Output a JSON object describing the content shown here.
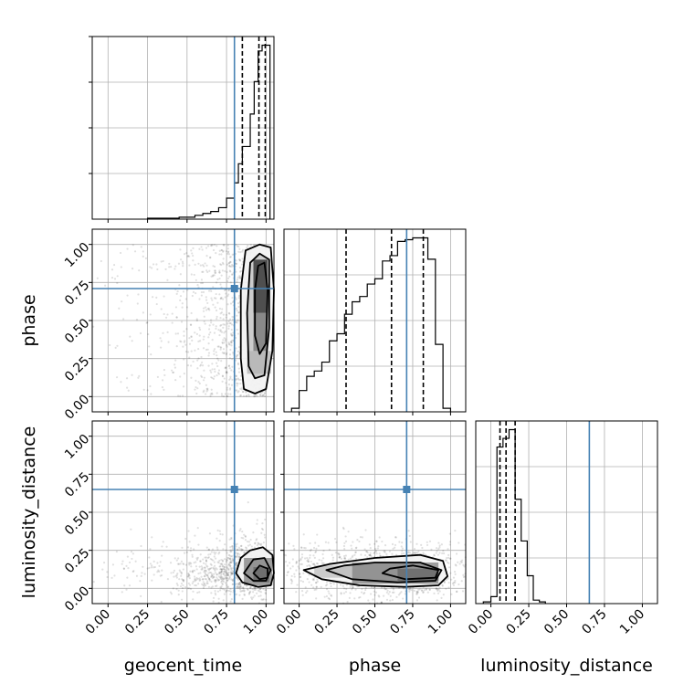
{
  "chart_data": {
    "type": "corner",
    "parameters": [
      "geocent_time",
      "phase",
      "luminosity_distance"
    ],
    "axis_labels": {
      "x": [
        "geocent_time",
        "phase",
        "luminosity_distance"
      ],
      "y": [
        "",
        "phase",
        "luminosity_distance"
      ]
    },
    "tick_values": [
      0.0,
      0.25,
      0.5,
      0.75,
      1.0
    ],
    "tick_labels": [
      "0.00",
      "0.25",
      "0.50",
      "0.75",
      "1.00"
    ],
    "ranges": {
      "geocent_time": [
        -0.1,
        1.05
      ],
      "phase": [
        -0.1,
        1.1
      ],
      "luminosity_distance": [
        -0.1,
        1.1
      ]
    },
    "grid": true,
    "truths": {
      "geocent_time": 0.8,
      "phase": 0.71,
      "luminosity_distance": 0.65
    },
    "quantiles": {
      "geocent_time": [
        0.85,
        0.955,
        0.995
      ],
      "phase": [
        0.31,
        0.61,
        0.82
      ],
      "luminosity_distance": [
        0.06,
        0.1,
        0.16
      ]
    },
    "histograms": {
      "geocent_time": {
        "edges": [
          0.25,
          0.3,
          0.35,
          0.4,
          0.45,
          0.5,
          0.55,
          0.6,
          0.65,
          0.7,
          0.75,
          0.8,
          0.825,
          0.85,
          0.875,
          0.9,
          0.925,
          0.95,
          0.975,
          1.0,
          1.025
        ],
        "counts": [
          0.005,
          0.005,
          0.005,
          0.005,
          0.01,
          0.01,
          0.02,
          0.03,
          0.04,
          0.06,
          0.11,
          0.19,
          0.29,
          0.38,
          0.38,
          0.55,
          0.72,
          0.88,
          0.91,
          0.91
        ]
      },
      "phase": {
        "edges": [
          -0.05,
          0.0,
          0.05,
          0.1,
          0.15,
          0.2,
          0.25,
          0.3,
          0.35,
          0.4,
          0.45,
          0.5,
          0.55,
          0.6,
          0.65,
          0.7,
          0.75,
          0.8,
          0.85,
          0.9,
          0.95,
          1.0
        ],
        "counts": [
          0.02,
          0.12,
          0.2,
          0.23,
          0.28,
          0.4,
          0.44,
          0.55,
          0.62,
          0.65,
          0.72,
          0.75,
          0.85,
          0.88,
          0.96,
          0.97,
          0.98,
          0.98,
          0.86,
          0.38,
          0.02
        ]
      },
      "luminosity_distance": {
        "edges": [
          -0.05,
          0.0,
          0.04,
          0.08,
          0.12,
          0.16,
          0.2,
          0.24,
          0.28,
          0.32,
          0.36
        ],
        "counts": [
          0.01,
          0.04,
          0.9,
          0.95,
          1.0,
          0.6,
          0.36,
          0.16,
          0.02,
          0.01
        ]
      }
    },
    "density_2d": {
      "phase_vs_geocent_time": {
        "x": "geocent_time",
        "y": "phase",
        "contours": [
          [
            [
              0.93,
              0.02
            ],
            [
              1.0,
              0.05
            ],
            [
              1.04,
              0.3
            ],
            [
              1.05,
              0.7
            ],
            [
              1.03,
              0.98
            ],
            [
              0.96,
              1.0
            ],
            [
              0.87,
              0.96
            ],
            [
              0.84,
              0.7
            ],
            [
              0.84,
              0.25
            ],
            [
              0.86,
              0.05
            ]
          ],
          [
            [
              0.93,
              0.12
            ],
            [
              0.99,
              0.14
            ],
            [
              1.02,
              0.45
            ],
            [
              1.02,
              0.9
            ],
            [
              0.96,
              0.94
            ],
            [
              0.9,
              0.88
            ],
            [
              0.88,
              0.55
            ],
            [
              0.89,
              0.2
            ]
          ],
          [
            [
              0.96,
              0.28
            ],
            [
              1.0,
              0.35
            ],
            [
              1.01,
              0.7
            ],
            [
              0.99,
              0.88
            ],
            [
              0.95,
              0.86
            ],
            [
              0.93,
              0.7
            ],
            [
              0.93,
              0.4
            ]
          ]
        ],
        "cores": [
          {
            "x": [
              0.92,
              1.01
            ],
            "y": [
              0.55,
              0.9
            ],
            "level": 0.85
          },
          {
            "x": [
              0.92,
              1.01
            ],
            "y": [
              0.3,
              0.55
            ],
            "level": 0.55
          },
          {
            "x": [
              0.88,
              1.03
            ],
            "y": [
              0.15,
              0.3
            ],
            "level": 0.3
          }
        ]
      },
      "luminosity_distance_vs_geocent_time": {
        "x": "geocent_time",
        "y": "luminosity_distance",
        "contours": [
          [
            [
              0.81,
              0.1
            ],
            [
              0.85,
              0.04
            ],
            [
              0.95,
              0.01
            ],
            [
              1.03,
              0.02
            ],
            [
              1.05,
              0.1
            ],
            [
              1.04,
              0.22
            ],
            [
              0.98,
              0.27
            ],
            [
              0.9,
              0.25
            ],
            [
              0.84,
              0.2
            ]
          ],
          [
            [
              0.86,
              0.1
            ],
            [
              0.92,
              0.05
            ],
            [
              1.0,
              0.05
            ],
            [
              1.03,
              0.12
            ],
            [
              0.99,
              0.2
            ],
            [
              0.92,
              0.19
            ]
          ],
          [
            [
              0.92,
              0.1
            ],
            [
              0.96,
              0.06
            ],
            [
              1.01,
              0.07
            ],
            [
              1.01,
              0.13
            ],
            [
              0.96,
              0.15
            ]
          ]
        ],
        "cores": [
          {
            "x": [
              0.92,
              1.02
            ],
            "y": [
              0.04,
              0.14
            ],
            "level": 0.95
          },
          {
            "x": [
              0.86,
              1.04
            ],
            "y": [
              0.02,
              0.2
            ],
            "level": 0.5
          }
        ]
      },
      "luminosity_distance_vs_phase": {
        "x": "phase",
        "y": "luminosity_distance",
        "contours": [
          [
            [
              0.03,
              0.12
            ],
            [
              0.15,
              0.06
            ],
            [
              0.4,
              0.02
            ],
            [
              0.7,
              0.01
            ],
            [
              0.92,
              0.02
            ],
            [
              0.98,
              0.08
            ],
            [
              0.95,
              0.18
            ],
            [
              0.8,
              0.22
            ],
            [
              0.5,
              0.2
            ],
            [
              0.2,
              0.16
            ]
          ],
          [
            [
              0.18,
              0.12
            ],
            [
              0.35,
              0.06
            ],
            [
              0.65,
              0.04
            ],
            [
              0.9,
              0.05
            ],
            [
              0.94,
              0.12
            ],
            [
              0.8,
              0.17
            ],
            [
              0.5,
              0.17
            ],
            [
              0.3,
              0.15
            ]
          ],
          [
            [
              0.55,
              0.1
            ],
            [
              0.7,
              0.06
            ],
            [
              0.9,
              0.07
            ],
            [
              0.92,
              0.12
            ],
            [
              0.75,
              0.15
            ],
            [
              0.6,
              0.13
            ]
          ]
        ],
        "cores": [
          {
            "x": [
              0.65,
              0.92
            ],
            "y": [
              0.05,
              0.13
            ],
            "level": 0.9
          },
          {
            "x": [
              0.35,
              0.92
            ],
            "y": [
              0.03,
              0.17
            ],
            "level": 0.5
          },
          {
            "x": [
              0.1,
              0.35
            ],
            "y": [
              0.07,
              0.15
            ],
            "level": 0.25
          }
        ]
      }
    },
    "colors": {
      "truth": "#4682b4",
      "hist": "#000000",
      "grid": "#b0b0b0",
      "points": "#000000"
    }
  }
}
